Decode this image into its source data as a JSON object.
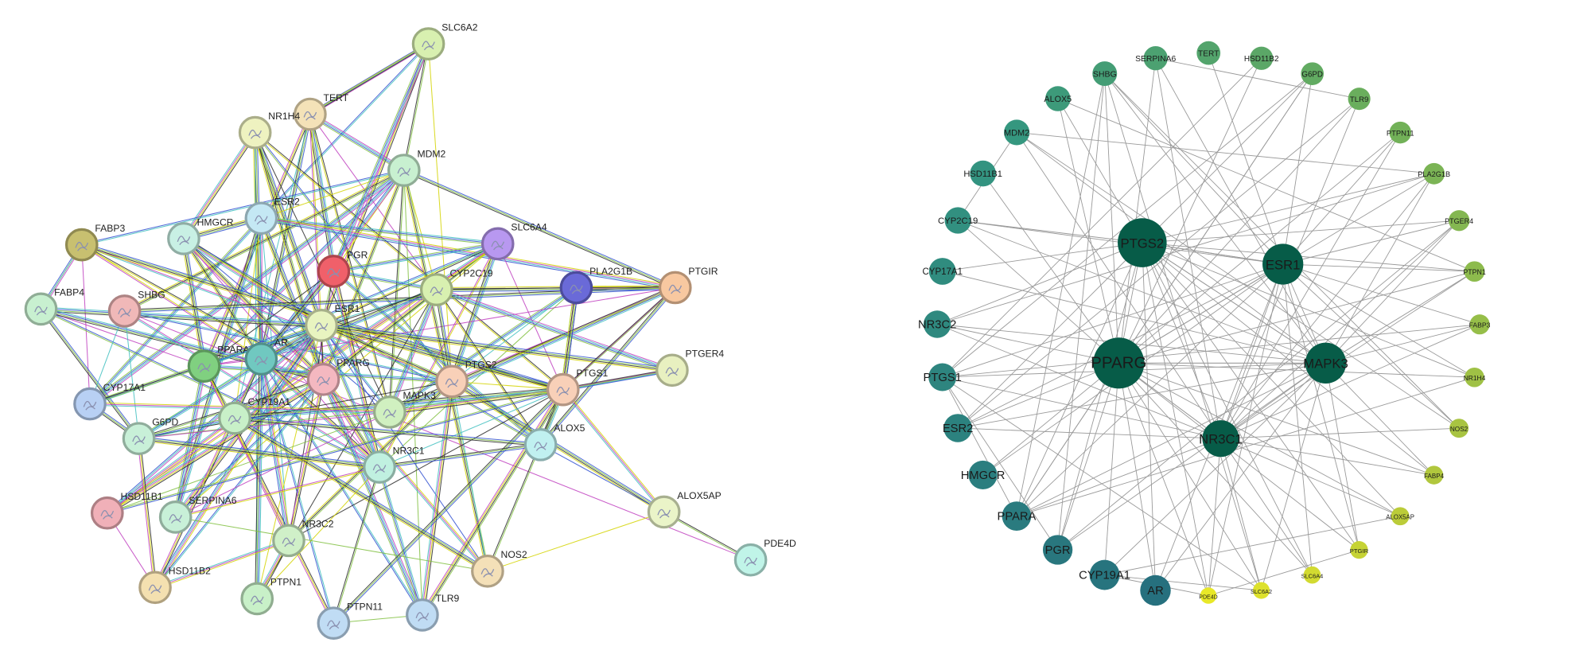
{
  "left_network": {
    "nodes": [
      "SLC6A2",
      "TERT",
      "NR1H4",
      "MDM2",
      "ESR2",
      "HMGCR",
      "FABP3",
      "SLC6A4",
      "PGR",
      "PLA2G1B",
      "PTGIR",
      "FABP4",
      "SHBG",
      "CYP2C19",
      "ESR1",
      "PPARA",
      "AR",
      "PPARG",
      "PTGS2",
      "PTGS1",
      "PTGER4",
      "CYP17A1",
      "CYP19A1",
      "MAPK3",
      "G6PD",
      "ALOX5",
      "NR3C1",
      "HSD11B1",
      "SERPINA6",
      "ALOX5AP",
      "NR3C2",
      "NOS2",
      "PDE4D",
      "HSD11B2",
      "PTPN1",
      "PTPN11",
      "TLR9"
    ]
  },
  "right_network": {
    "hubs": [
      "PTGS2",
      "ESR1",
      "PPARG",
      "MAPK3",
      "NR3C1"
    ],
    "ring": [
      "AR",
      "CYP19A1",
      "PGR",
      "PPARA",
      "HMGCR",
      "ESR2",
      "PTGS1",
      "NR3C2",
      "CYP17A1",
      "CYP2C19",
      "HSD11B1",
      "MDM2",
      "ALOX5",
      "SHBG",
      "SERPINA6",
      "TERT",
      "HSD11B2",
      "G6PD",
      "TLR9",
      "PTPN11",
      "PLA2G1B",
      "PTGER4",
      "PTPN1",
      "FABP3",
      "NR1H4",
      "NOS2",
      "FABP4",
      "ALOX5AP",
      "PTGIR",
      "SLC6A4",
      "SLC6A2",
      "PDE4D"
    ]
  }
}
